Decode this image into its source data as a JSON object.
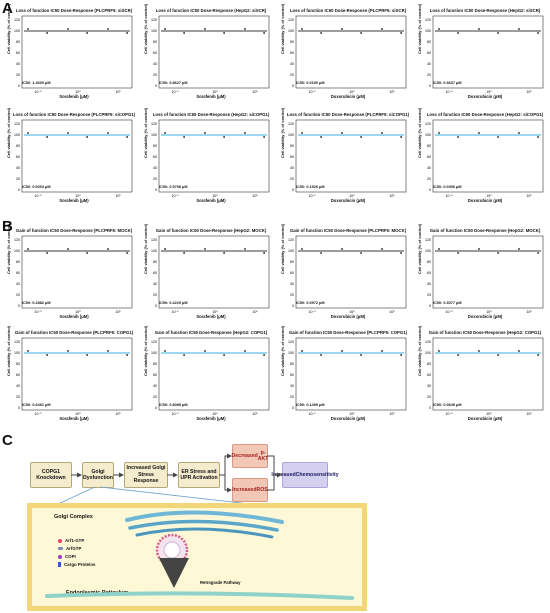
{
  "sections": {
    "a": "A",
    "b": "B",
    "c": "C"
  },
  "axes": {
    "ylabel": "Cell viability (% of control)",
    "yticks": [
      "0",
      "20",
      "40",
      "60",
      "80",
      "100",
      "120"
    ],
    "xticks": [
      "10⁻¹",
      "10⁰",
      "10¹"
    ]
  },
  "colors": {
    "control": "#3a3a3a",
    "copg1": "#3aaee0"
  },
  "panels_a": [
    {
      "title": "Loss of function IC50 Dose-Response (PLCPRF5: siSCR)",
      "xlabel": "Sorafenib (μM)",
      "ic50": "IC50: 1.4600 μM",
      "color": "control"
    },
    {
      "title": "Loss of function IC50 Dose-Response (HepG2: siSCR)",
      "xlabel": "Sorafenib (μM)",
      "ic50": "IC50: 0.8627 μM",
      "color": "control"
    },
    {
      "title": "Loss of function IC50 Dose-Response (PLCPRF5: siSCR)",
      "xlabel": "Doxorubicin (μM)",
      "ic50": "IC50: 0.0190 μM",
      "color": "control"
    },
    {
      "title": "Loss of function IC50 Dose-Response (HepG2: siSCR)",
      "xlabel": "Doxorubicin (μM)",
      "ic50": "IC50: 0.3637 μM",
      "color": "control"
    },
    {
      "title": "Loss of function IC50 Dose-Response (PLCPRF5: siCOPG1)",
      "xlabel": "Sorafenib (μM)",
      "ic50": "IC50: 0.6003 μM",
      "color": "copg1"
    },
    {
      "title": "Loss of function IC50 Dose-Response (HepG2: siCOPG1)",
      "xlabel": "Sorafenib (μM)",
      "ic50": "IC50: 0.5798 μM",
      "color": "copg1"
    },
    {
      "title": "Loss of function IC50 Dose-Response (PLCPRF5: siCOPG1)",
      "xlabel": "Doxorubicin (μM)",
      "ic50": "IC50: 0.1526 μM",
      "color": "copg1"
    },
    {
      "title": "Loss of function IC50 Dose-Response (HepG2: siCOPG1)",
      "xlabel": "Doxorubicin (μM)",
      "ic50": "IC50: 0.0306 μM",
      "color": "copg1"
    }
  ],
  "panels_b": [
    {
      "title": "Gain of function IC50 Dose-Response (PLCPRF5: MOCK)",
      "xlabel": "Sorafenib (μM)",
      "ic50": "IC50: 0.2882 μM",
      "color": "control"
    },
    {
      "title": "Gain of function IC50 Dose-Response (HepG2: MOCK)",
      "xlabel": "Sorafenib (μM)",
      "ic50": "IC50: 0.4229 μM",
      "color": "control"
    },
    {
      "title": "Gain of function IC50 Dose-Response (PLCPRF5: MOCK)",
      "xlabel": "Doxorubicin (μM)",
      "ic50": "IC50: 0.0972 μM",
      "color": "control"
    },
    {
      "title": "Gain of function IC50 Dose-Response (HepG2: MOCK)",
      "xlabel": "Doxorubicin (μM)",
      "ic50": "IC50: 0.3077 μM",
      "color": "control"
    },
    {
      "title": "Gain of function IC50 Dose-Response (PLCPRF5: COPG1)",
      "xlabel": "Sorafenib (μM)",
      "ic50": "IC50: 0.6461 μM",
      "color": "copg1"
    },
    {
      "title": "Gain of function IC50 Dose-Response (HepG2: COPG1)",
      "xlabel": "Sorafenib (μM)",
      "ic50": "IC50: 0.8085 μM",
      "color": "copg1"
    },
    {
      "title": "Gain of function IC50 Dose-Response (PLCPRF5: COPG1)",
      "xlabel": "Doxorubicin (μM)",
      "ic50": "IC50: 0.1499 μM",
      "color": "copg1"
    },
    {
      "title": "Gain of function IC50 Dose-Response (HepG2: COPG1)",
      "xlabel": "Doxorubicin (μM)",
      "ic50": "IC50: 0.0649 μM",
      "color": "copg1"
    }
  ],
  "significance": "***",
  "flow": {
    "copg1": "COPG1 Knockdown",
    "golgi": "Golgi Dysfunction",
    "stress": "Increased Golgi Stress Response",
    "er": "ER Stress and UPR Activation",
    "pakt1": "Decreased",
    "pakt2": "p-AKT",
    "ros1": "Increased",
    "ros2": "ROS",
    "chemo1": "Increased",
    "chemo2": "Chemosensitivity"
  },
  "golgi_panel": {
    "title": "Golgi Complex",
    "er_label": "Endoplasmic Reticulum",
    "retro_label": "Retrograde Pathway",
    "legend": [
      "Arf1-GTP",
      "ArfGTP",
      "COPI",
      "Cargo Proteins"
    ]
  }
}
